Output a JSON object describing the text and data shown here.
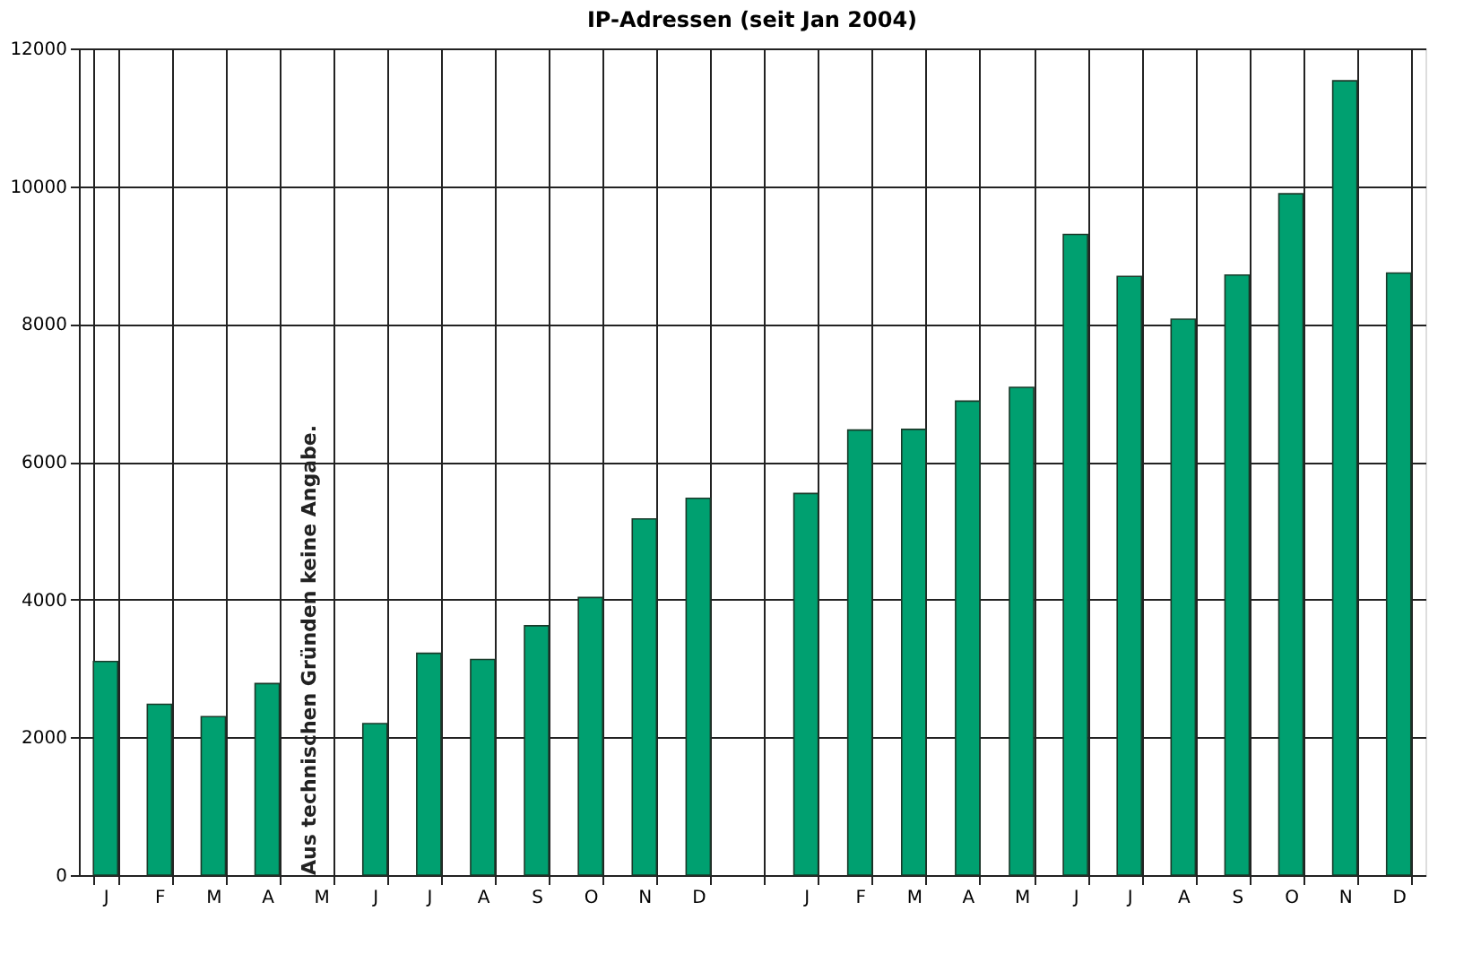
{
  "chart_data": {
    "type": "bar",
    "title": "IP-Adressen (seit Jan 2004)",
    "categories": [
      "J",
      "F",
      "M",
      "A",
      "M",
      "J",
      "J",
      "A",
      "S",
      "O",
      "N",
      "D",
      null,
      "J",
      "F",
      "M",
      "A",
      "M",
      "J",
      "J",
      "A",
      "S",
      "O",
      "N",
      "D"
    ],
    "values": [
      3100,
      2480,
      2300,
      2780,
      null,
      2200,
      3220,
      3130,
      3620,
      4030,
      5170,
      5470,
      null,
      5540,
      6460,
      6470,
      6880,
      7080,
      9300,
      8690,
      8070,
      8710,
      9890,
      11530,
      8740
    ],
    "color": "#00a070",
    "ylim": [
      0,
      12000
    ],
    "yticks": [
      0,
      2000,
      4000,
      6000,
      8000,
      10000,
      12000
    ],
    "grid": true,
    "annotations": [
      "Aus technischen Gründen keine Angabe."
    ]
  }
}
